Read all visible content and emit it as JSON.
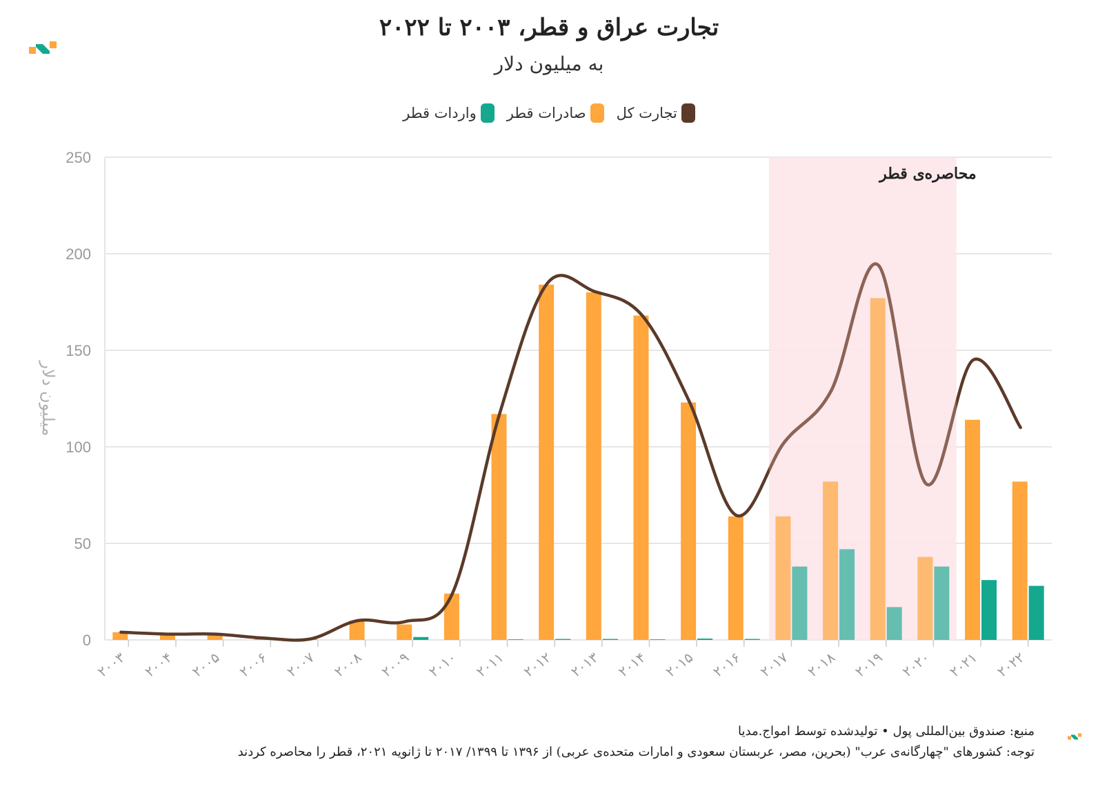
{
  "header": {
    "title": "تجارت عراق و قطر، ۲۰۰۳ تا ۲۰۲۲",
    "subtitle": "به میلیون دلار"
  },
  "legend": [
    {
      "label": "تجارت کل",
      "color": "#5b3a29"
    },
    {
      "label": "صادرات قطر",
      "color": "#ffa63d"
    },
    {
      "label": "واردات قطر",
      "color": "#14a88f"
    }
  ],
  "annotation": {
    "label": "محاصره‌ی قطر",
    "color": "#fde6ea"
  },
  "footer": {
    "source": "منبع: صندوق بین‌المللی پول • تولیدشده توسط امواج.مدیا",
    "note": "توجه: کشورهای \"چهارگانه‌ی عرب\" (بحرین، مصر، عربستان سعودی و امارات متحده‌ی عربی) از ۱۳۹۶ تا ۱۳۹۹/ ۲۰۱۷ تا ژانویه ۲۰۲۱، قطر را محاصره کردند"
  },
  "chart_data": {
    "type": "bar",
    "ylabel": "میلیون دلار",
    "ylim": [
      0,
      250
    ],
    "yticks": [
      0,
      50,
      100,
      150,
      200,
      250
    ],
    "grid": true,
    "legend_position": "top",
    "categories": [
      "۲۰۰۳",
      "۲۰۰۴",
      "۲۰۰۵",
      "۲۰۰۶",
      "۲۰۰۷",
      "۲۰۰۸",
      "۲۰۰۹",
      "۲۰۱۰",
      "۲۰۱۱",
      "۲۰۱۲",
      "۲۰۱۳",
      "۲۰۱۴",
      "۲۰۱۵",
      "۲۰۱۶",
      "۲۰۱۷",
      "۲۰۱۸",
      "۲۰۱۹",
      "۲۰۲۰",
      "۲۰۲۱",
      "۲۰۲۲"
    ],
    "highlight_range": [
      "۲۰۱۷",
      "۲۰۲۰"
    ],
    "series": [
      {
        "name": "صادرات قطر",
        "type": "bar",
        "color": "#ffa63d",
        "values": [
          4,
          3,
          3,
          1,
          0.5,
          10,
          8,
          24,
          117,
          184,
          180,
          168,
          123,
          64,
          64,
          82,
          177,
          43,
          114,
          82
        ]
      },
      {
        "name": "واردات قطر",
        "type": "bar",
        "color": "#14a88f",
        "values": [
          0,
          0,
          0,
          0,
          0,
          0,
          1.5,
          0,
          0.3,
          0.5,
          0.5,
          0.3,
          0.7,
          0.5,
          38,
          47,
          17,
          38,
          31,
          28
        ]
      },
      {
        "name": "تجارت کل",
        "type": "line",
        "color": "#5b3a29",
        "values": [
          4,
          3,
          3,
          1,
          0.5,
          10,
          9.5,
          24,
          117.3,
          184.5,
          180.5,
          168.3,
          123.7,
          64.5,
          102,
          129,
          194,
          81,
          145,
          110
        ]
      }
    ]
  }
}
